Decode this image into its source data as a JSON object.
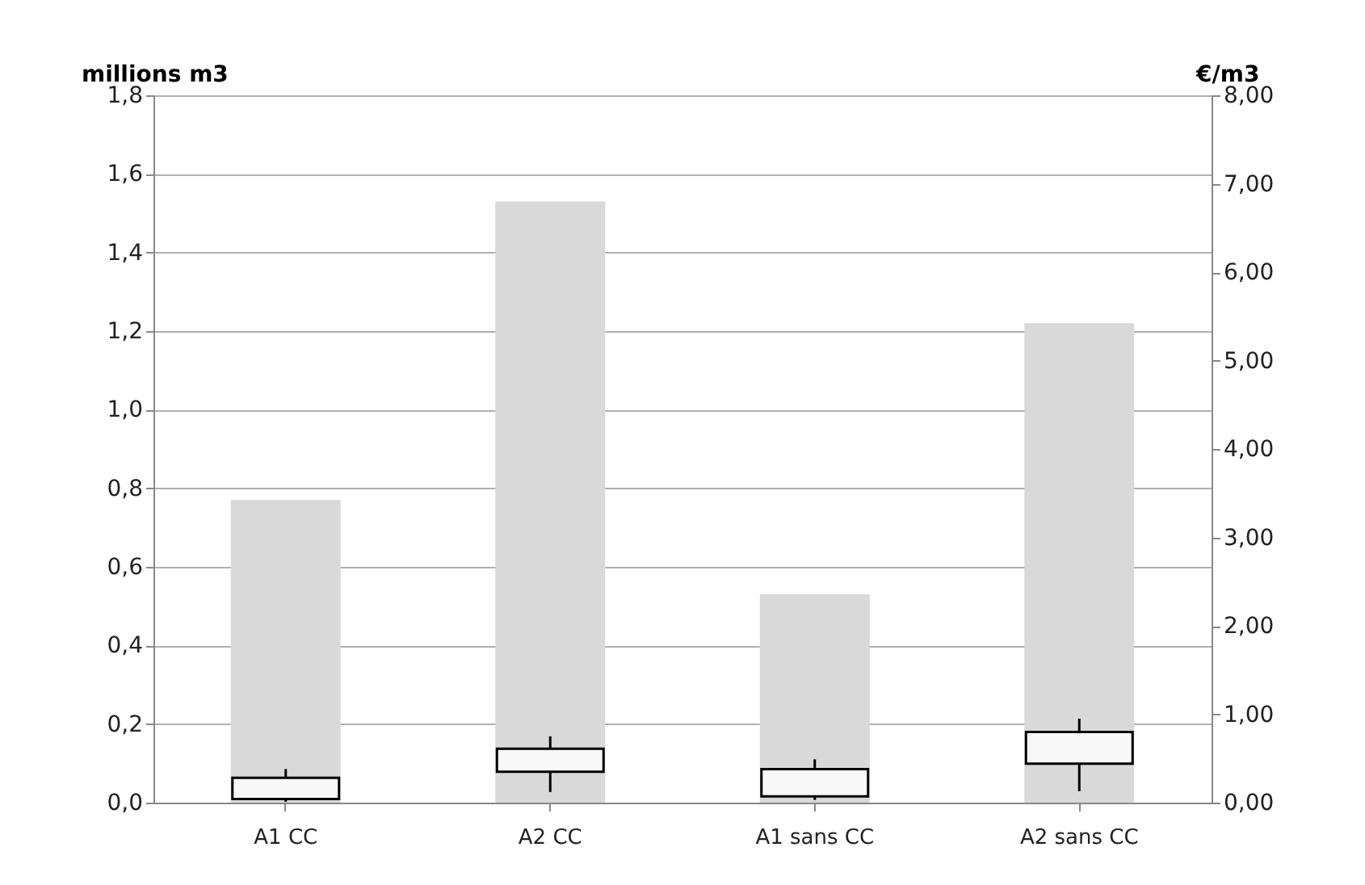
{
  "chart_data": {
    "type": "bar",
    "ylabel": "millions m3",
    "y2label": "€/m3",
    "categories": [
      "A1 CC",
      "A2 CC",
      "A1 sans CC",
      "A2 sans CC"
    ],
    "ylim": [
      0,
      1.8
    ],
    "yticks": [
      {
        "value": 0,
        "label": "0,0"
      },
      {
        "value": 0.2,
        "label": "0,2"
      },
      {
        "value": 0.4,
        "label": "0,4"
      },
      {
        "value": 0.6,
        "label": "0,6"
      },
      {
        "value": 0.8,
        "label": "0,8"
      },
      {
        "value": 1.0,
        "label": "1,0"
      },
      {
        "value": 1.2,
        "label": "1,2"
      },
      {
        "value": 1.4,
        "label": "1,4"
      },
      {
        "value": 1.6,
        "label": "1,6"
      },
      {
        "value": 1.8,
        "label": "1,8"
      }
    ],
    "y2lim": [
      0,
      8
    ],
    "y2ticks": [
      {
        "value": 0,
        "label": "0,00"
      },
      {
        "value": 1,
        "label": "1,00"
      },
      {
        "value": 2,
        "label": "2,00"
      },
      {
        "value": 3,
        "label": "3,00"
      },
      {
        "value": 4,
        "label": "4,00"
      },
      {
        "value": 5,
        "label": "5,00"
      },
      {
        "value": 6,
        "label": "6,00"
      },
      {
        "value": 7,
        "label": "7,00"
      },
      {
        "value": 8,
        "label": "8,00"
      }
    ],
    "grid": "y",
    "series": [
      {
        "color": "#d9d9d9",
        "values": [
          0.77,
          1.53,
          0.53,
          1.22
        ]
      },
      {
        "type": "box",
        "axis": "y2",
        "color": "#f8f8f8",
        "boxes": [
          {
            "low": 0.01,
            "q1": 0.04,
            "q3": 0.28,
            "high": 0.38
          },
          {
            "low": 0.12,
            "q1": 0.35,
            "q3": 0.61,
            "high": 0.75
          },
          {
            "low": 0.03,
            "q1": 0.07,
            "q3": 0.38,
            "high": 0.49
          },
          {
            "low": 0.13,
            "q1": 0.44,
            "q3": 0.8,
            "high": 0.95
          }
        ]
      }
    ]
  }
}
